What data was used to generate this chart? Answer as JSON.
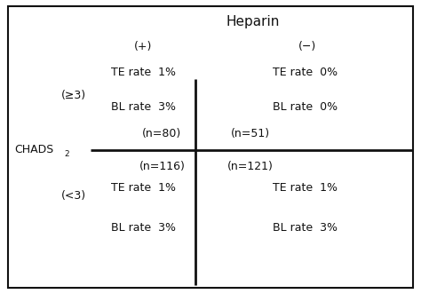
{
  "title": "Heparin",
  "col_plus_label": "(+)",
  "col_minus_label": "(−)",
  "row_ge3_label": "(≥3)",
  "row_lt3_label": "(<3)",
  "chads_label": "CHADS",
  "chads_subscript": "2",
  "top_left": {
    "te_rate": "TE rate  1%",
    "bl_rate": "BL rate  3%",
    "n": "(n=80)"
  },
  "top_right": {
    "te_rate": "TE rate  0%",
    "bl_rate": "BL rate  0%",
    "n": "(n=51)"
  },
  "bottom_left": {
    "te_rate": "TE rate  1%",
    "bl_rate": "BL rate  3%",
    "n": "(n=116)"
  },
  "bottom_right": {
    "te_rate": "TE rate  1%",
    "bl_rate": "BL rate  3%",
    "n": "(n=121)"
  },
  "background_color": "#ffffff",
  "text_color": "#111111",
  "border_color": "#111111",
  "line_color": "#111111",
  "font_size": 9,
  "title_font_size": 11
}
